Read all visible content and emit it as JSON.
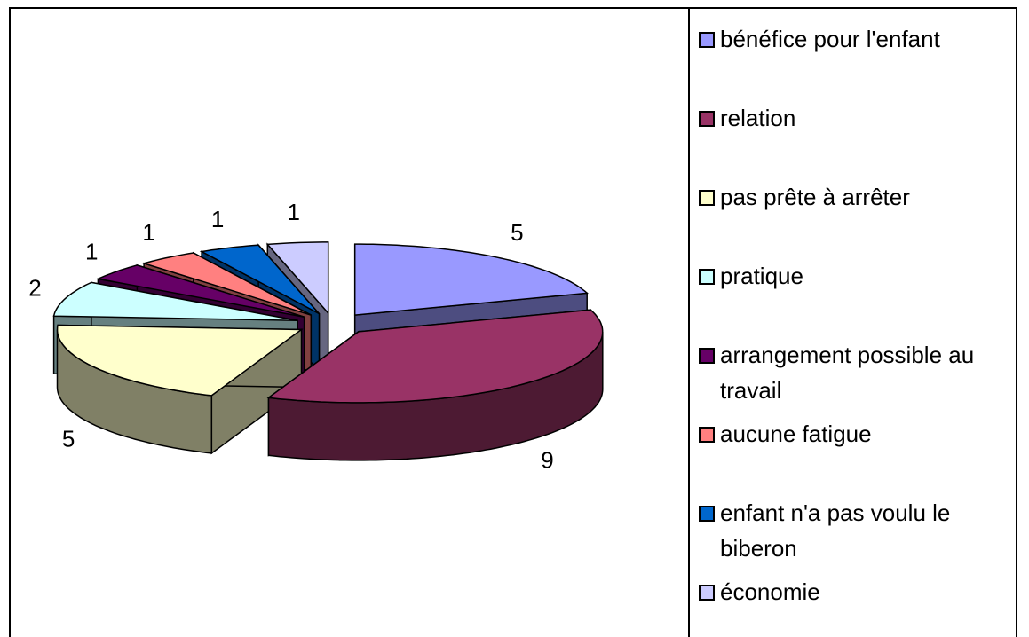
{
  "chart_data": {
    "type": "pie",
    "categories": [
      "bénéfice pour l'enfant",
      "relation",
      "pas prête à arrêter",
      "pratique",
      "arrangement possible au travail",
      "aucune fatigue",
      "enfant n'a pas voulu le biberon",
      "économie"
    ],
    "values": [
      5,
      9,
      5,
      2,
      1,
      1,
      1,
      1
    ],
    "colors": [
      "#9999ff",
      "#993366",
      "#ffffcc",
      "#ccffff",
      "#660066",
      "#ff8080",
      "#0066cc",
      "#ccccff"
    ],
    "legend": "right"
  }
}
